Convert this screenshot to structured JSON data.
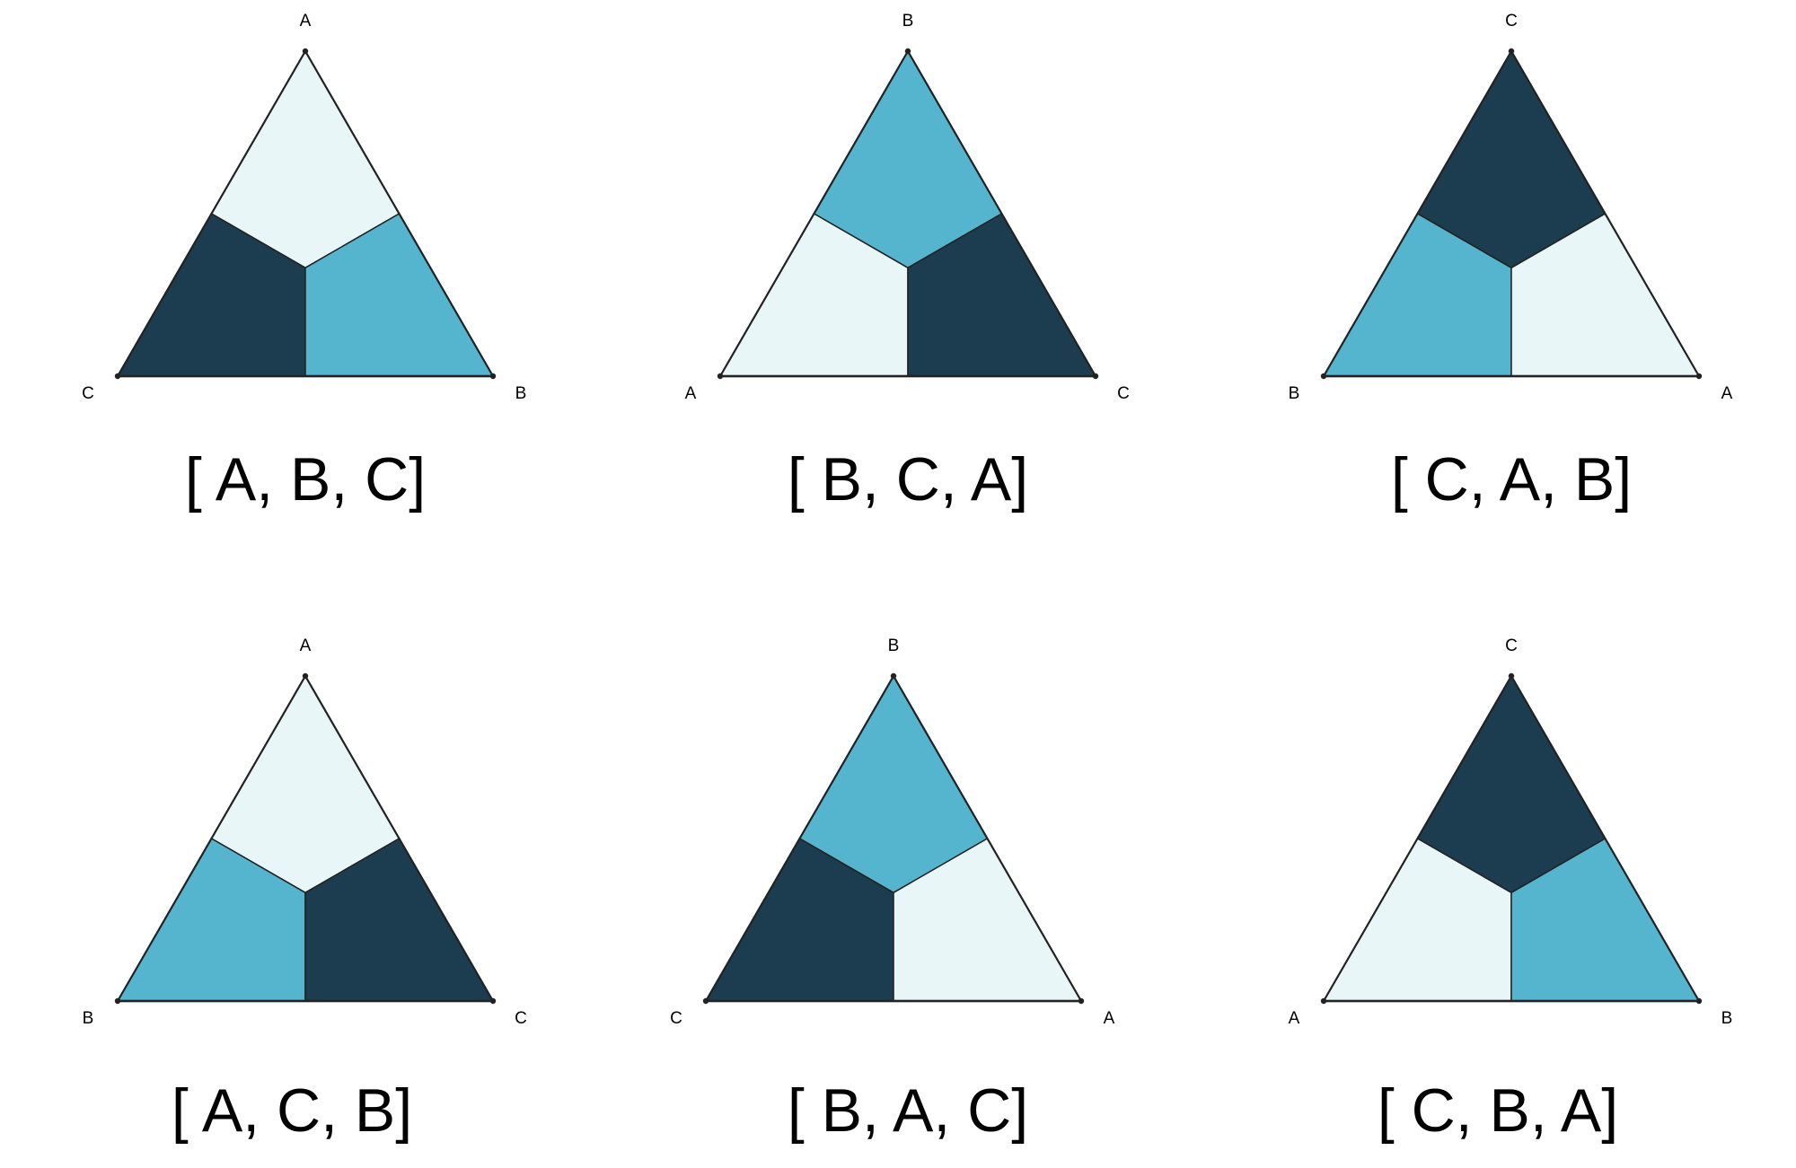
{
  "colors": {
    "light": "#e8f6f8",
    "medium": "#55b5ce",
    "dark": "#1b3d4f",
    "outline": "#222222"
  },
  "diagrams": [
    {
      "caption": "[ A, B, C]",
      "vertices": {
        "top": "A",
        "left": "C",
        "right": "B"
      },
      "regions": {
        "top": "light",
        "left": "dark",
        "right": "medium"
      }
    },
    {
      "caption": "[ B, C, A]",
      "vertices": {
        "top": "B",
        "left": "A",
        "right": "C"
      },
      "regions": {
        "top": "medium",
        "left": "light",
        "right": "dark"
      }
    },
    {
      "caption": "[ C, A, B]",
      "vertices": {
        "top": "C",
        "left": "B",
        "right": "A"
      },
      "regions": {
        "top": "dark",
        "left": "medium",
        "right": "light"
      }
    },
    {
      "caption": "[ A, C, B]",
      "vertices": {
        "top": "A",
        "left": "B",
        "right": "C"
      },
      "regions": {
        "top": "light",
        "left": "medium",
        "right": "dark"
      }
    },
    {
      "caption": "[ B, A, C]",
      "vertices": {
        "top": "B",
        "left": "C",
        "right": "A"
      },
      "regions": {
        "top": "medium",
        "left": "dark",
        "right": "light"
      }
    },
    {
      "caption": "[ C, B, A]",
      "vertices": {
        "top": "C",
        "left": "A",
        "right": "B"
      },
      "regions": {
        "top": "dark",
        "left": "light",
        "right": "medium"
      }
    }
  ]
}
